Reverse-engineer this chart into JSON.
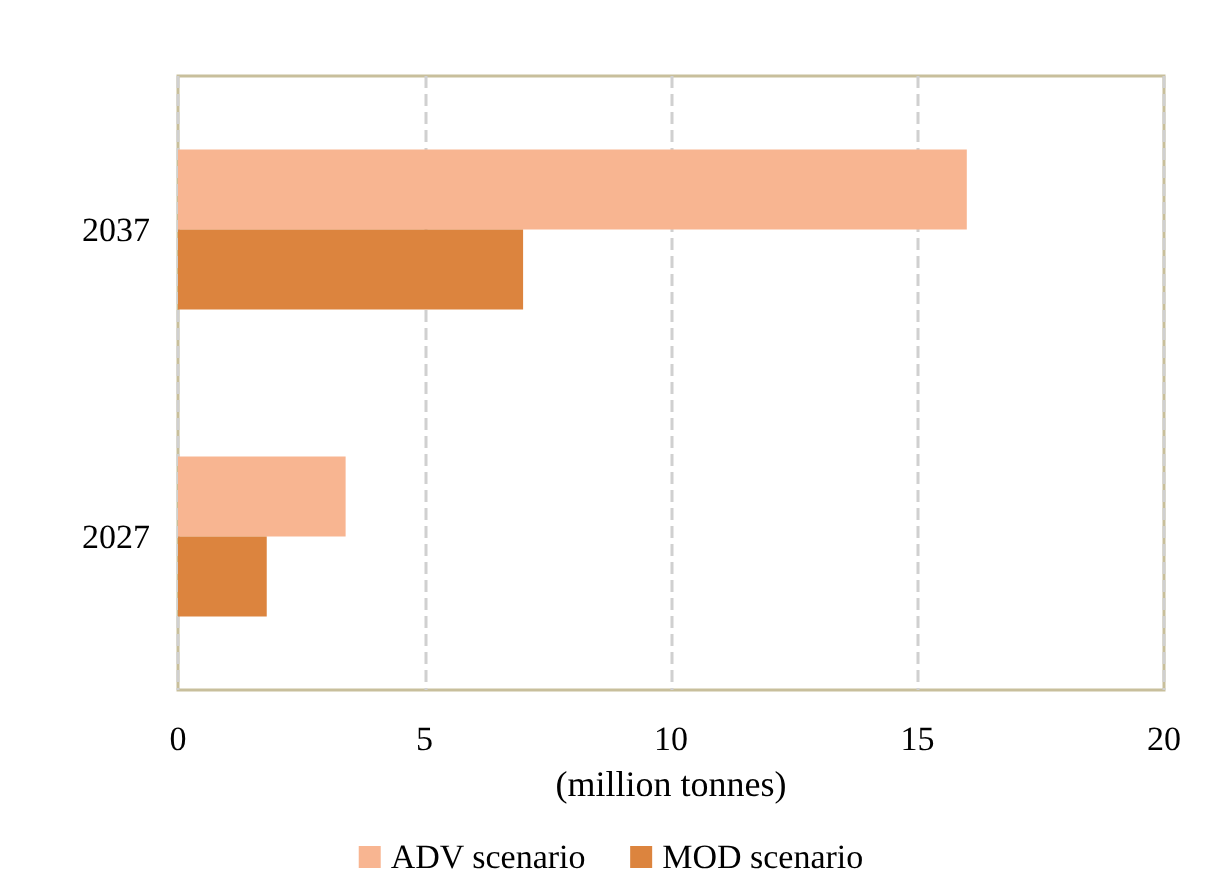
{
  "chart_data": {
    "type": "bar",
    "orientation": "horizontal",
    "categories": [
      "2037",
      "2027"
    ],
    "series": [
      {
        "name": "ADV scenario",
        "color": "#f8b591",
        "values": [
          16.0,
          3.4
        ]
      },
      {
        "name": "MOD scenario",
        "color": "#dc843e",
        "values": [
          7.0,
          1.8
        ]
      }
    ],
    "xlabel": "(million tonnes)",
    "xlim": [
      0,
      20
    ],
    "xticks": [
      0,
      5,
      10,
      15,
      20
    ],
    "grid": "x",
    "legend": "bottom"
  }
}
